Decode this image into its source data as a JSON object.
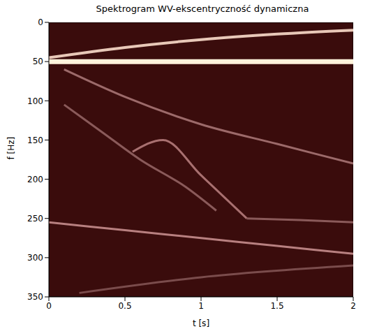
{
  "chart_data": {
    "type": "line",
    "title": "Spektrogram WV-ekscentryczność dynamiczna",
    "x_label": "t [s]",
    "y_label": "f [Hz]",
    "xlim": [
      0,
      2
    ],
    "xticks": [
      0,
      0.5,
      1,
      1.5,
      2
    ],
    "ylim": [
      350,
      0
    ],
    "yticks": [
      0,
      50,
      100,
      150,
      200,
      250,
      300,
      350
    ],
    "background": "#3a0c0c",
    "series": [
      {
        "color": "#fff3dc",
        "x": [
          0,
          0.5,
          1,
          1.5,
          2
        ],
        "values": [
          50,
          50,
          50,
          50,
          50
        ]
      },
      {
        "color": "#e8c8b8",
        "x": [
          0,
          0.5,
          1,
          1.5,
          2
        ],
        "values": [
          45,
          32,
          22,
          15,
          10
        ]
      },
      {
        "color": "#9c6a6a",
        "x": [
          0.1,
          0.5,
          1,
          1.5,
          2
        ],
        "values": [
          60,
          95,
          130,
          155,
          180
        ]
      },
      {
        "color": "#8a5a5a",
        "x": [
          0.1,
          0.35,
          0.6,
          0.9,
          1.1
        ],
        "values": [
          105,
          140,
          175,
          210,
          240
        ]
      },
      {
        "color": "#a87070",
        "x": [
          0.55,
          0.75,
          1,
          1.3
        ],
        "values": [
          165,
          150,
          195,
          250
        ]
      },
      {
        "color": "#b88080",
        "x": [
          0,
          0.5,
          1,
          1.5,
          2
        ],
        "values": [
          255,
          265,
          275,
          285,
          295
        ]
      },
      {
        "color": "#8a5a5a",
        "x": [
          1.3,
          1.65,
          2
        ],
        "values": [
          250,
          252,
          255
        ]
      },
      {
        "color": "#7a4c4c",
        "x": [
          0.2,
          1,
          2
        ],
        "values": [
          345,
          325,
          310
        ]
      }
    ]
  }
}
